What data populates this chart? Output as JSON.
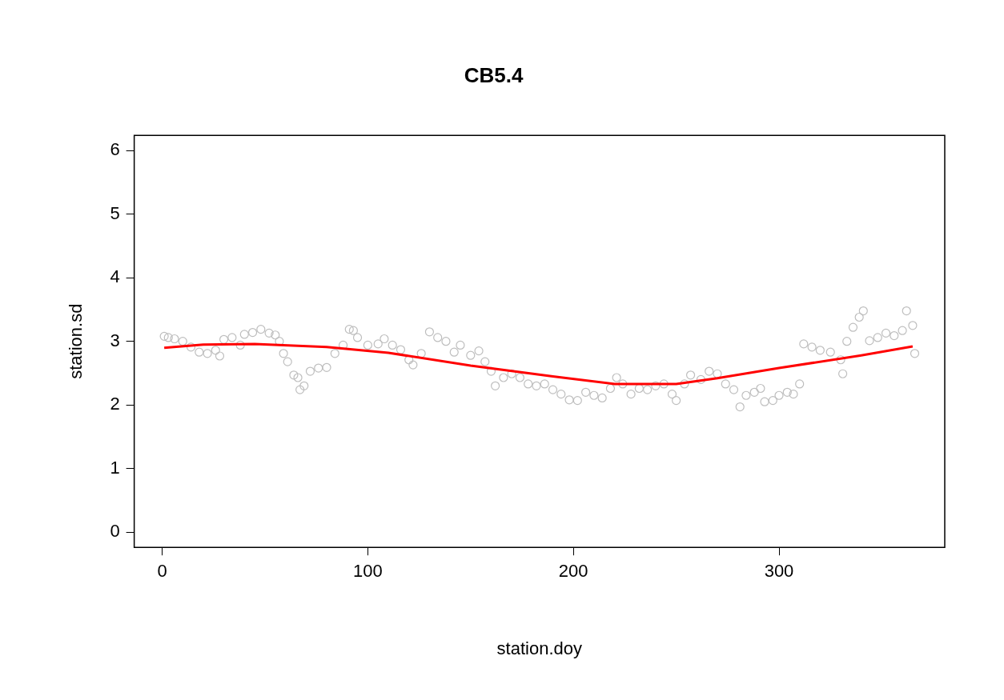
{
  "chart_data": {
    "type": "scatter",
    "title": "CB5.4",
    "xlabel": "station.doy",
    "ylabel": "station.sd",
    "xlim": [
      -13.6,
      380.6
    ],
    "ylim": [
      -0.24,
      6.24
    ],
    "xticks": [
      0,
      100,
      200,
      300
    ],
    "yticks": [
      0,
      1,
      2,
      3,
      4,
      5,
      6
    ],
    "grid": false,
    "legend": false,
    "series": [
      {
        "marker": "circle",
        "color": "#bebebe",
        "x": [
          1,
          3,
          6,
          10,
          14,
          18,
          22,
          26,
          28,
          30,
          34,
          38,
          40,
          44,
          48,
          52,
          55,
          57,
          59,
          61,
          64,
          66,
          67,
          69,
          72,
          76,
          80,
          84,
          88,
          91,
          93,
          95,
          100,
          105,
          108,
          112,
          116,
          120,
          122,
          126,
          130,
          134,
          138,
          142,
          145,
          150,
          154,
          157,
          160,
          162,
          166,
          170,
          174,
          178,
          182,
          186,
          190,
          194,
          198,
          202,
          206,
          210,
          214,
          218,
          221,
          224,
          228,
          232,
          236,
          240,
          244,
          248,
          250,
          254,
          257,
          262,
          266,
          270,
          274,
          278,
          281,
          284,
          288,
          291,
          293,
          297,
          300,
          304,
          307,
          310,
          312,
          316,
          320,
          325,
          330,
          331,
          333,
          336,
          339,
          341,
          344,
          348,
          352,
          356,
          360,
          362,
          365,
          366
        ],
        "values": [
          3.08,
          3.06,
          3.04,
          3.0,
          2.91,
          2.83,
          2.81,
          2.86,
          2.77,
          3.03,
          3.06,
          2.94,
          3.11,
          3.14,
          3.19,
          3.13,
          3.1,
          3.0,
          2.81,
          2.68,
          2.47,
          2.43,
          2.24,
          2.3,
          2.53,
          2.58,
          2.59,
          2.81,
          2.94,
          3.19,
          3.17,
          3.06,
          2.94,
          2.96,
          3.04,
          2.94,
          2.87,
          2.71,
          2.63,
          2.81,
          3.15,
          3.06,
          3.0,
          2.83,
          2.94,
          2.78,
          2.85,
          2.68,
          2.53,
          2.3,
          2.43,
          2.49,
          2.43,
          2.33,
          2.3,
          2.33,
          2.24,
          2.17,
          2.08,
          2.07,
          2.2,
          2.15,
          2.11,
          2.26,
          2.43,
          2.33,
          2.17,
          2.26,
          2.24,
          2.3,
          2.33,
          2.17,
          2.07,
          2.33,
          2.47,
          2.4,
          2.53,
          2.49,
          2.33,
          2.24,
          1.97,
          2.15,
          2.2,
          2.26,
          2.05,
          2.07,
          2.15,
          2.2,
          2.17,
          2.33,
          2.96,
          2.91,
          2.86,
          2.83,
          2.71,
          2.49,
          3.0,
          3.22,
          3.38,
          3.48,
          3.01,
          3.06,
          3.13,
          3.09,
          3.17,
          3.48,
          3.25,
          2.81
        ]
      },
      {
        "type": "line",
        "marker": "none",
        "color": "#ff0000",
        "x": [
          1,
          20,
          45,
          80,
          110,
          150,
          190,
          220,
          250,
          270,
          300,
          340,
          365
        ],
        "values": [
          2.9,
          2.95,
          2.96,
          2.91,
          2.82,
          2.62,
          2.45,
          2.33,
          2.33,
          2.42,
          2.58,
          2.78,
          2.92
        ]
      }
    ]
  }
}
